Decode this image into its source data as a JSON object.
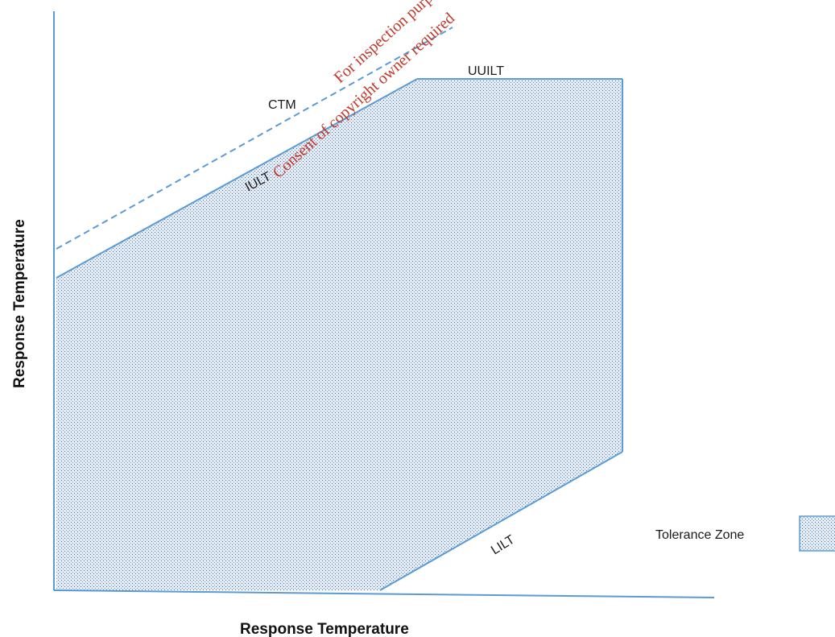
{
  "diagram": {
    "x_axis_title": "Response Temperature",
    "y_axis_title": "Response Temperature",
    "labels": {
      "ctm": "CTM",
      "iult": "IULT",
      "uuilt": "UUILT",
      "lilt": "LILT"
    },
    "legend": {
      "label": "Tolerance Zone"
    },
    "watermark": {
      "line1": "For inspection purposes only.",
      "line2": "Consent of copyright owner required"
    },
    "colors": {
      "line": "#5b9bd5",
      "zone_fill": "#dfe8f3",
      "zone_dot": "#4f6f9a",
      "watermark": "#c0392b"
    }
  }
}
